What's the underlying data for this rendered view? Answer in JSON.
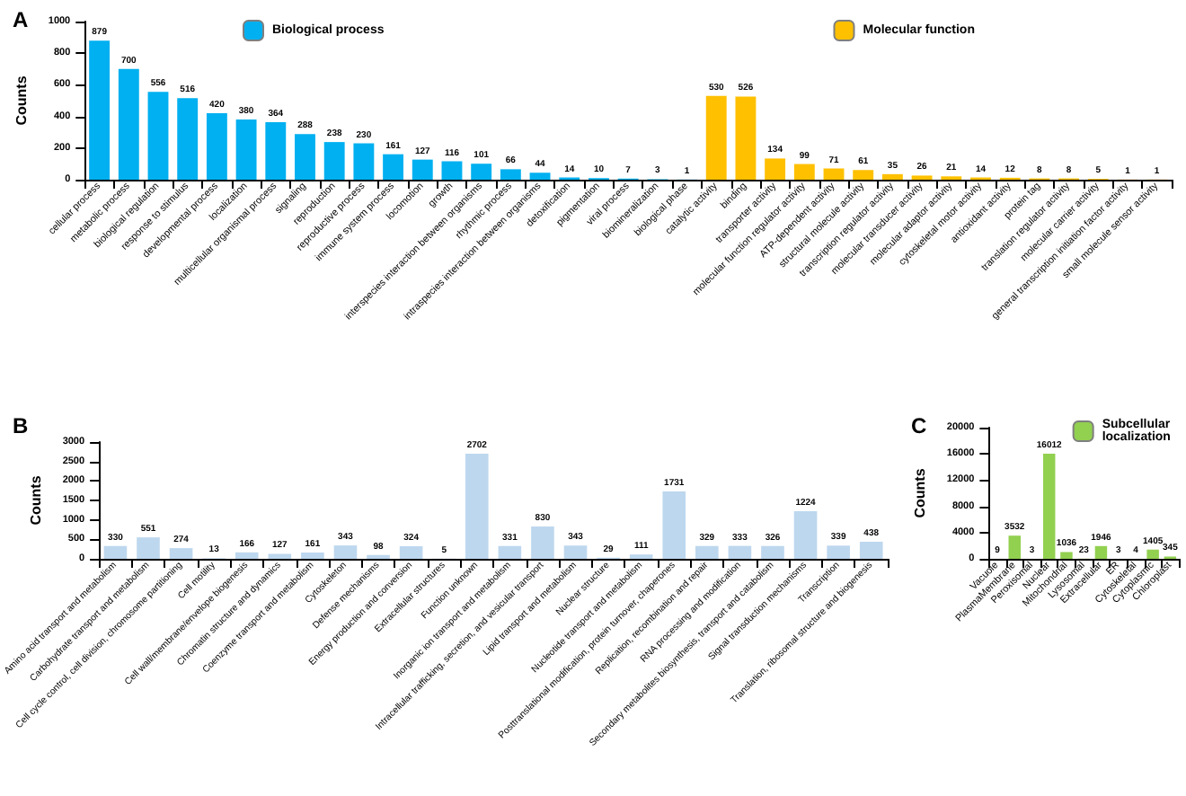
{
  "chart_data": [
    {
      "type": "bar",
      "title": "A",
      "ylabel": "Counts",
      "categories": [
        "cellular process",
        "metabolic process",
        "biological regulation",
        "response to stimulus",
        "developmental process",
        "localization",
        "multicellular organismal process",
        "signaling",
        "reproduction",
        "reproductive process",
        "immune system process",
        "locomotion",
        "growth",
        "interspecies interaction between organisms",
        "rhythmic process",
        "intraspecies interaction between organisms",
        "detoxification",
        "pigmentation",
        "viral process",
        "biomineralization",
        "biological phase",
        "catalytic activity",
        "binding",
        "transporter activity",
        "molecular function regulator activity",
        "ATP-dependent activity",
        "structural molecule activity",
        "transcription regulator activity",
        "molecular transducer activity",
        "molecular adaptor activity",
        "cytoskeletal motor activity",
        "antioxidant activity",
        "protein tag",
        "translation regulator activity",
        "molecular carrier activity",
        "general transcription initiation factor activity",
        "small molecule sensor activity"
      ],
      "series": [
        {
          "name": "Biological process",
          "color": "#00b0f0",
          "values": [
            879,
            700,
            556,
            516,
            420,
            380,
            364,
            288,
            238,
            230,
            161,
            127,
            116,
            101,
            66,
            44,
            14,
            10,
            7,
            3,
            1,
            null,
            null,
            null,
            null,
            null,
            null,
            null,
            null,
            null,
            null,
            null,
            null,
            null,
            null,
            null,
            null
          ]
        },
        {
          "name": "Molecular function",
          "color": "#ffc000",
          "values": [
            null,
            null,
            null,
            null,
            null,
            null,
            null,
            null,
            null,
            null,
            null,
            null,
            null,
            null,
            null,
            null,
            null,
            null,
            null,
            null,
            null,
            530,
            526,
            134,
            99,
            71,
            61,
            35,
            26,
            21,
            14,
            12,
            8,
            8,
            5,
            1,
            1
          ]
        }
      ],
      "ylim": [
        0,
        1000
      ],
      "yticks": [
        0,
        200,
        400,
        600,
        800,
        1000
      ],
      "data_labels": true,
      "legend": "top",
      "grid": false
    },
    {
      "type": "bar",
      "title": "B",
      "ylabel": "Counts",
      "categories": [
        "Amino acid transport and metabolism",
        "Carbohydrate transport and metabolism",
        "Cell cycle control, cell division, chromosome partitioning",
        "Cell motility",
        "Cell wall/membrane/envelope biogenesis",
        "Chromatin structure and dynamics",
        "Coenzyme transport and metabolism",
        "Cytoskeleton",
        "Defense mechanisms",
        "Energy production and conversion",
        "Extracellular structures",
        "Function unknown",
        "Inorganic ion transport and metabolism",
        "Intracellular trafficking, secretion, and vesicular transport",
        "Lipid transport and metabolism",
        "Nuclear structure",
        "Nucleotide transport and metabolism",
        "Posttranslational modification, protein turnover, chaperones",
        "Replication, recombination and repair",
        "RNA processing and modification",
        "Secondary metabolites biosynthesis, transport and catabolism",
        "Signal transduction mechanisms",
        "Transcription",
        "Translation, ribosomal structure and biogenesis"
      ],
      "series": [
        {
          "color": "#bdd7ee",
          "values": [
            330,
            551,
            274,
            13,
            166,
            127,
            161,
            343,
            98,
            324,
            5,
            2702,
            331,
            830,
            343,
            29,
            111,
            1731,
            329,
            333,
            326,
            1224,
            339,
            438
          ]
        }
      ],
      "ylim": [
        0,
        3000
      ],
      "yticks": [
        0,
        500,
        1000,
        1500,
        2000,
        2500,
        3000
      ],
      "data_labels": true,
      "grid": false
    },
    {
      "type": "bar",
      "title": "C",
      "ylabel": "Counts",
      "categories": [
        "Vacuole",
        "PlasmaMembrane",
        "Peroxisomal",
        "Nuclear",
        "Mitochondrial",
        "Lysosomal",
        "Extracellular",
        "ER",
        "Cytoskeletal",
        "Cytoplasmic",
        "Chloroplast"
      ],
      "series": [
        {
          "name": "Subcellular localization",
          "color": "#92d050",
          "values": [
            9,
            3532,
            3,
            16012,
            1036,
            23,
            1946,
            3,
            4,
            1405,
            345
          ]
        }
      ],
      "ylim": [
        0,
        20000
      ],
      "yticks": [
        0,
        4000,
        8000,
        12000,
        16000,
        20000
      ],
      "data_labels": true,
      "legend": "top right",
      "grid": false
    }
  ]
}
